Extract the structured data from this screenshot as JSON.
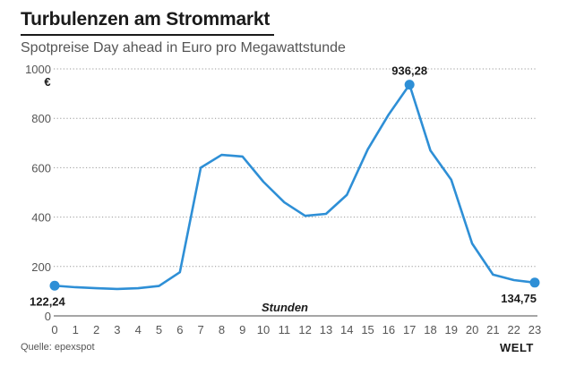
{
  "chart_data": {
    "type": "line",
    "title": "Turbulenzen am Strommarkt",
    "subtitle": "Spotpreise Day ahead in Euro pro Megawattstunde",
    "xlabel": "Stunden",
    "ylabel": "€",
    "ylim": [
      0,
      1000
    ],
    "yticks": [
      0,
      200,
      400,
      600,
      800,
      1000
    ],
    "ytick_labels": [
      "0",
      "200",
      "400",
      "600",
      "800",
      "1000"
    ],
    "x": [
      0,
      1,
      2,
      3,
      4,
      5,
      6,
      7,
      8,
      9,
      10,
      11,
      12,
      13,
      14,
      15,
      16,
      17,
      18,
      19,
      20,
      21,
      22,
      23
    ],
    "x_labels": [
      "0",
      "1",
      "2",
      "3",
      "4",
      "5",
      "6",
      "7",
      "8",
      "9",
      "10",
      "11",
      "12",
      "13",
      "14",
      "15",
      "16",
      "17",
      "18",
      "19",
      "20",
      "21",
      "22",
      "23"
    ],
    "series": [
      {
        "name": "Spotpreis",
        "color": "#2e8fd6",
        "values": [
          122.24,
          116,
          112,
          109,
          112,
          121,
          177,
          600,
          652,
          645,
          543,
          460,
          405,
          413,
          490,
          674,
          815,
          936.28,
          670,
          551,
          293,
          167,
          145,
          134.75
        ]
      }
    ],
    "annotations": [
      {
        "x": 0,
        "label": "122,24",
        "position": "below"
      },
      {
        "x": 17,
        "label": "936,28",
        "position": "above"
      },
      {
        "x": 23,
        "label": "134,75",
        "position": "below"
      }
    ],
    "grid": true,
    "legend": "none"
  },
  "footer": {
    "source": "Quelle: epexspot",
    "logo": "WELT"
  }
}
